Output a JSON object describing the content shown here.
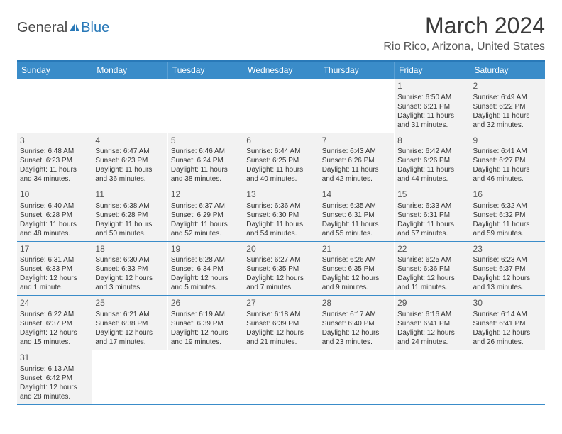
{
  "logo": {
    "text1": "General",
    "text2": "Blue"
  },
  "title": "March 2024",
  "location": "Rio Rico, Arizona, United States",
  "colors": {
    "header_bg": "#3a8cc9",
    "header_border_top": "#2979b8",
    "row_divider": "#3a8cc9",
    "cell_bg": "#f2f2f2",
    "text": "#333333"
  },
  "weekdays": [
    "Sunday",
    "Monday",
    "Tuesday",
    "Wednesday",
    "Thursday",
    "Friday",
    "Saturday"
  ],
  "weeks": [
    [
      {
        "n": "",
        "sr": "",
        "ss": "",
        "dl": ""
      },
      {
        "n": "",
        "sr": "",
        "ss": "",
        "dl": ""
      },
      {
        "n": "",
        "sr": "",
        "ss": "",
        "dl": ""
      },
      {
        "n": "",
        "sr": "",
        "ss": "",
        "dl": ""
      },
      {
        "n": "",
        "sr": "",
        "ss": "",
        "dl": ""
      },
      {
        "n": "1",
        "sr": "Sunrise: 6:50 AM",
        "ss": "Sunset: 6:21 PM",
        "dl": "Daylight: 11 hours and 31 minutes."
      },
      {
        "n": "2",
        "sr": "Sunrise: 6:49 AM",
        "ss": "Sunset: 6:22 PM",
        "dl": "Daylight: 11 hours and 32 minutes."
      }
    ],
    [
      {
        "n": "3",
        "sr": "Sunrise: 6:48 AM",
        "ss": "Sunset: 6:23 PM",
        "dl": "Daylight: 11 hours and 34 minutes."
      },
      {
        "n": "4",
        "sr": "Sunrise: 6:47 AM",
        "ss": "Sunset: 6:23 PM",
        "dl": "Daylight: 11 hours and 36 minutes."
      },
      {
        "n": "5",
        "sr": "Sunrise: 6:46 AM",
        "ss": "Sunset: 6:24 PM",
        "dl": "Daylight: 11 hours and 38 minutes."
      },
      {
        "n": "6",
        "sr": "Sunrise: 6:44 AM",
        "ss": "Sunset: 6:25 PM",
        "dl": "Daylight: 11 hours and 40 minutes."
      },
      {
        "n": "7",
        "sr": "Sunrise: 6:43 AM",
        "ss": "Sunset: 6:26 PM",
        "dl": "Daylight: 11 hours and 42 minutes."
      },
      {
        "n": "8",
        "sr": "Sunrise: 6:42 AM",
        "ss": "Sunset: 6:26 PM",
        "dl": "Daylight: 11 hours and 44 minutes."
      },
      {
        "n": "9",
        "sr": "Sunrise: 6:41 AM",
        "ss": "Sunset: 6:27 PM",
        "dl": "Daylight: 11 hours and 46 minutes."
      }
    ],
    [
      {
        "n": "10",
        "sr": "Sunrise: 6:40 AM",
        "ss": "Sunset: 6:28 PM",
        "dl": "Daylight: 11 hours and 48 minutes."
      },
      {
        "n": "11",
        "sr": "Sunrise: 6:38 AM",
        "ss": "Sunset: 6:28 PM",
        "dl": "Daylight: 11 hours and 50 minutes."
      },
      {
        "n": "12",
        "sr": "Sunrise: 6:37 AM",
        "ss": "Sunset: 6:29 PM",
        "dl": "Daylight: 11 hours and 52 minutes."
      },
      {
        "n": "13",
        "sr": "Sunrise: 6:36 AM",
        "ss": "Sunset: 6:30 PM",
        "dl": "Daylight: 11 hours and 54 minutes."
      },
      {
        "n": "14",
        "sr": "Sunrise: 6:35 AM",
        "ss": "Sunset: 6:31 PM",
        "dl": "Daylight: 11 hours and 55 minutes."
      },
      {
        "n": "15",
        "sr": "Sunrise: 6:33 AM",
        "ss": "Sunset: 6:31 PM",
        "dl": "Daylight: 11 hours and 57 minutes."
      },
      {
        "n": "16",
        "sr": "Sunrise: 6:32 AM",
        "ss": "Sunset: 6:32 PM",
        "dl": "Daylight: 11 hours and 59 minutes."
      }
    ],
    [
      {
        "n": "17",
        "sr": "Sunrise: 6:31 AM",
        "ss": "Sunset: 6:33 PM",
        "dl": "Daylight: 12 hours and 1 minute."
      },
      {
        "n": "18",
        "sr": "Sunrise: 6:30 AM",
        "ss": "Sunset: 6:33 PM",
        "dl": "Daylight: 12 hours and 3 minutes."
      },
      {
        "n": "19",
        "sr": "Sunrise: 6:28 AM",
        "ss": "Sunset: 6:34 PM",
        "dl": "Daylight: 12 hours and 5 minutes."
      },
      {
        "n": "20",
        "sr": "Sunrise: 6:27 AM",
        "ss": "Sunset: 6:35 PM",
        "dl": "Daylight: 12 hours and 7 minutes."
      },
      {
        "n": "21",
        "sr": "Sunrise: 6:26 AM",
        "ss": "Sunset: 6:35 PM",
        "dl": "Daylight: 12 hours and 9 minutes."
      },
      {
        "n": "22",
        "sr": "Sunrise: 6:25 AM",
        "ss": "Sunset: 6:36 PM",
        "dl": "Daylight: 12 hours and 11 minutes."
      },
      {
        "n": "23",
        "sr": "Sunrise: 6:23 AM",
        "ss": "Sunset: 6:37 PM",
        "dl": "Daylight: 12 hours and 13 minutes."
      }
    ],
    [
      {
        "n": "24",
        "sr": "Sunrise: 6:22 AM",
        "ss": "Sunset: 6:37 PM",
        "dl": "Daylight: 12 hours and 15 minutes."
      },
      {
        "n": "25",
        "sr": "Sunrise: 6:21 AM",
        "ss": "Sunset: 6:38 PM",
        "dl": "Daylight: 12 hours and 17 minutes."
      },
      {
        "n": "26",
        "sr": "Sunrise: 6:19 AM",
        "ss": "Sunset: 6:39 PM",
        "dl": "Daylight: 12 hours and 19 minutes."
      },
      {
        "n": "27",
        "sr": "Sunrise: 6:18 AM",
        "ss": "Sunset: 6:39 PM",
        "dl": "Daylight: 12 hours and 21 minutes."
      },
      {
        "n": "28",
        "sr": "Sunrise: 6:17 AM",
        "ss": "Sunset: 6:40 PM",
        "dl": "Daylight: 12 hours and 23 minutes."
      },
      {
        "n": "29",
        "sr": "Sunrise: 6:16 AM",
        "ss": "Sunset: 6:41 PM",
        "dl": "Daylight: 12 hours and 24 minutes."
      },
      {
        "n": "30",
        "sr": "Sunrise: 6:14 AM",
        "ss": "Sunset: 6:41 PM",
        "dl": "Daylight: 12 hours and 26 minutes."
      }
    ],
    [
      {
        "n": "31",
        "sr": "Sunrise: 6:13 AM",
        "ss": "Sunset: 6:42 PM",
        "dl": "Daylight: 12 hours and 28 minutes."
      },
      {
        "n": "",
        "sr": "",
        "ss": "",
        "dl": ""
      },
      {
        "n": "",
        "sr": "",
        "ss": "",
        "dl": ""
      },
      {
        "n": "",
        "sr": "",
        "ss": "",
        "dl": ""
      },
      {
        "n": "",
        "sr": "",
        "ss": "",
        "dl": ""
      },
      {
        "n": "",
        "sr": "",
        "ss": "",
        "dl": ""
      },
      {
        "n": "",
        "sr": "",
        "ss": "",
        "dl": ""
      }
    ]
  ]
}
